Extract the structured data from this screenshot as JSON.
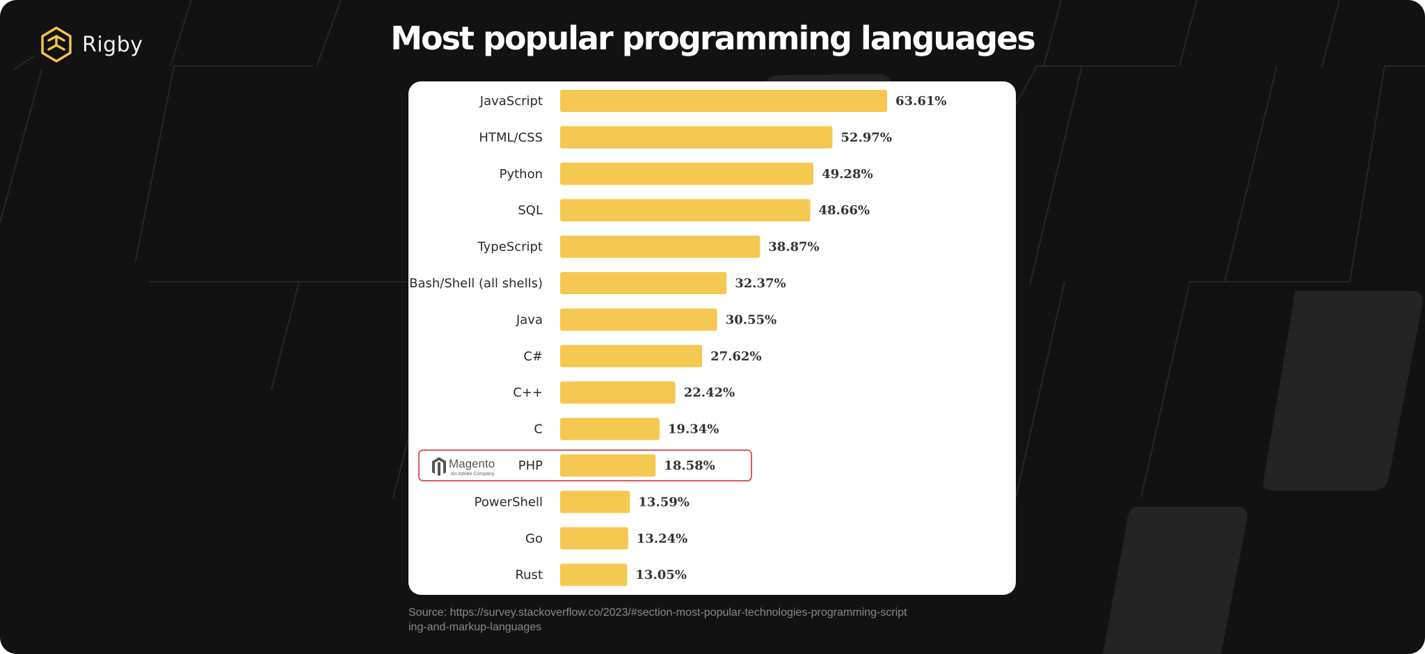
{
  "brand": {
    "name": "Rigby",
    "logo_icon": "hexagon-logo-icon",
    "accent_color": "#F5C24B"
  },
  "chart_data": {
    "type": "bar",
    "orientation": "horizontal",
    "title": "Most popular programming languages",
    "categories": [
      "JavaScript",
      "HTML/CSS",
      "Python",
      "SQL",
      "TypeScript",
      "Bash/Shell (all shells)",
      "Java",
      "C#",
      "C++",
      "C",
      "PHP",
      "PowerShell",
      "Go",
      "Rust"
    ],
    "values": [
      63.61,
      52.97,
      49.28,
      48.66,
      38.87,
      32.37,
      30.55,
      27.62,
      22.42,
      19.34,
      18.58,
      13.59,
      13.24,
      13.05
    ],
    "value_labels": [
      "63.61%",
      "52.97%",
      "49.28%",
      "48.66%",
      "38.87%",
      "32.37%",
      "30.55%",
      "27.62%",
      "22.42%",
      "19.34%",
      "18.58%",
      "13.59%",
      "13.24%",
      "13.05%"
    ],
    "value_unit": "%",
    "bar_color": "#F5C951",
    "highlight": {
      "category": "PHP",
      "outline_color": "#E05A5A",
      "logo_text": "Magento",
      "logo_subtext": "An Adobe Company",
      "logo_icon": "magento-logo-icon"
    },
    "grid": false,
    "legend": "none"
  },
  "source": "Source: https://survey.stackoverflow.co/2023/#section-most-popular-technologies-programming-scripting-and-markup-languages"
}
